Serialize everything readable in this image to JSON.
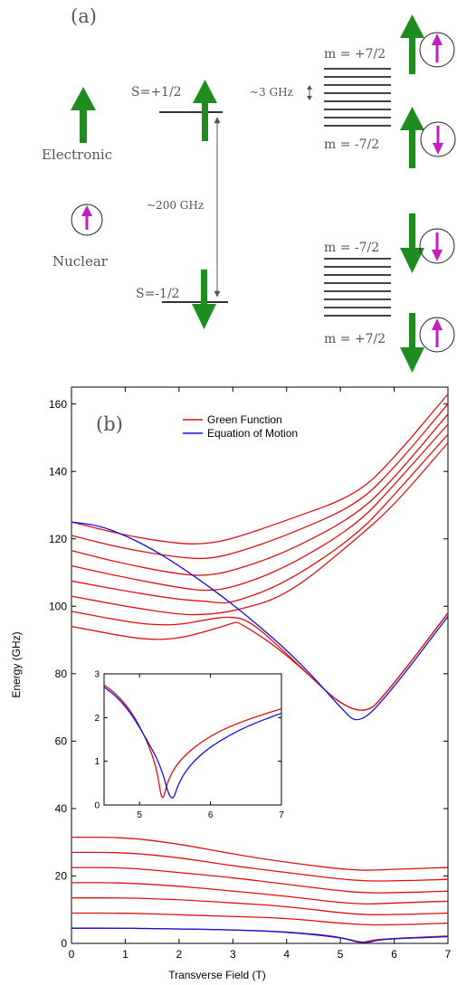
{
  "panel_a": {
    "label": "(a)",
    "electronic_label": "Electronic",
    "nuclear_label": "Nuclear",
    "s_up_label": "S=+1/2",
    "s_down_label": "S=-1/2",
    "gap_label": "~200 GHz",
    "hf_label": "~3 GHz",
    "upper_top_label": "m = +7/2",
    "upper_bottom_label": "m = -7/2",
    "lower_top_label": "m = -7/2",
    "lower_bottom_label": "m = +7/2",
    "colors": {
      "electronic": "#1e8c1e",
      "nuclear": "#c21ec2",
      "level": "#444444"
    }
  },
  "panel_b": {
    "label": "(b)",
    "legend_red": "Green Function",
    "legend_blue": "Equation of Motion"
  },
  "chart_data": [
    {
      "type": "line",
      "xlabel": "Transverse Field (T)",
      "ylabel": "Energy (GHz)",
      "xlim": [
        0,
        7
      ],
      "ylim": [
        0,
        165
      ],
      "xticks": [
        0,
        1,
        2,
        3,
        4,
        5,
        6,
        7
      ],
      "yticks": [
        0,
        20,
        40,
        60,
        80,
        100,
        120,
        140,
        160
      ],
      "legend": "top-center",
      "colors": {
        "Green Function": "#e01010",
        "Equation of Motion": "#1010e0"
      },
      "series": [
        {
          "name": "Green Function",
          "color": "#e01010",
          "points": [
            [
              0,
              125
            ],
            [
              1,
              121
            ],
            [
              2,
              118.5
            ],
            [
              2.5,
              118.5
            ],
            [
              3,
              120
            ],
            [
              4,
              125.5
            ],
            [
              5.3,
              133
            ],
            [
              6,
              144
            ],
            [
              7,
              163
            ]
          ]
        },
        {
          "name": "Green Function",
          "color": "#e01010",
          "points": [
            [
              0,
              121
            ],
            [
              1,
              117
            ],
            [
              2,
              114.5
            ],
            [
              2.5,
              114
            ],
            [
              3,
              115.5
            ],
            [
              4,
              121
            ],
            [
              5.3,
              130
            ],
            [
              6,
              141
            ],
            [
              7,
              160
            ]
          ]
        },
        {
          "name": "Green Function",
          "color": "#e01010",
          "points": [
            [
              0,
              116.5
            ],
            [
              1,
              112.5
            ],
            [
              2,
              109.5
            ],
            [
              2.5,
              109
            ],
            [
              3,
              110.5
            ],
            [
              4,
              116
            ],
            [
              5.3,
              127
            ],
            [
              6,
              138
            ],
            [
              7,
              157
            ]
          ]
        },
        {
          "name": "Green Function",
          "color": "#e01010",
          "points": [
            [
              0,
              112
            ],
            [
              1,
              108.5
            ],
            [
              2,
              105.5
            ],
            [
              2.5,
              104.5
            ],
            [
              3,
              105.5
            ],
            [
              4,
              111.5
            ],
            [
              5.3,
              124
            ],
            [
              6,
              136
            ],
            [
              7,
              154
            ]
          ]
        },
        {
          "name": "Green Function",
          "color": "#e01010",
          "points": [
            [
              0,
              107.5
            ],
            [
              1,
              104.5
            ],
            [
              2,
              102
            ],
            [
              2.5,
              101.5
            ],
            [
              2.7,
              101
            ],
            [
              3,
              101
            ],
            [
              4,
              107
            ],
            [
              5.3,
              121
            ],
            [
              6,
              133
            ],
            [
              7,
              151
            ]
          ]
        },
        {
          "name": "Green Function",
          "color": "#e01010",
          "points": [
            [
              0,
              103
            ],
            [
              1,
              100
            ],
            [
              2,
              97.5
            ],
            [
              2.5,
              97.5
            ],
            [
              3,
              98.5
            ],
            [
              4,
              103
            ],
            [
              5.3,
              120
            ],
            [
              6,
              130
            ],
            [
              7,
              148.5
            ]
          ]
        },
        {
          "name": "Green Function",
          "color": "#e01010",
          "points": [
            [
              0,
              98.5
            ],
            [
              1,
              95.5
            ],
            [
              1.5,
              94.5
            ],
            [
              2,
              94.5
            ],
            [
              2.5,
              96
            ],
            [
              2.9,
              97
            ],
            [
              3.3,
              96
            ],
            [
              4,
              86
            ],
            [
              5.35,
              65.5
            ],
            [
              6,
              77
            ],
            [
              7,
              98
            ]
          ]
        },
        {
          "name": "Green Function",
          "color": "#e01010",
          "points": [
            [
              0,
              94
            ],
            [
              1,
              91
            ],
            [
              1.5,
              90
            ],
            [
              2,
              90.5
            ],
            [
              2.5,
              92.5
            ],
            [
              3,
              95
            ],
            [
              3.1,
              95.5
            ],
            [
              4,
              86
            ],
            [
              5.35,
              65.5
            ],
            [
              6,
              77
            ],
            [
              7,
              98
            ]
          ]
        },
        {
          "name": "Equation of Motion",
          "color": "#1010e0",
          "points": [
            [
              0,
              125
            ],
            [
              0.5,
              124
            ],
            [
              1,
              121
            ],
            [
              1.5,
              117
            ],
            [
              2,
              112
            ],
            [
              2.5,
              106.5
            ],
            [
              3,
              100.5
            ],
            [
              3.5,
              94
            ],
            [
              4,
              87
            ],
            [
              4.5,
              79
            ],
            [
              5,
              70
            ],
            [
              5.35,
              64.5
            ],
            [
              6,
              76
            ],
            [
              7,
              97
            ]
          ]
        },
        {
          "name": "Green Function",
          "color": "#e01010",
          "points": [
            [
              0,
              31.5
            ],
            [
              1,
              31.5
            ],
            [
              2,
              29.5
            ],
            [
              3,
              26.5
            ],
            [
              4,
              24
            ],
            [
              5.3,
              21.5
            ],
            [
              6,
              22
            ],
            [
              7,
              22.5
            ]
          ]
        },
        {
          "name": "Green Function",
          "color": "#e01010",
          "points": [
            [
              0,
              27
            ],
            [
              1,
              27
            ],
            [
              2,
              25.5
            ],
            [
              3,
              23
            ],
            [
              4,
              21
            ],
            [
              5.3,
              18.5
            ],
            [
              6,
              18.5
            ],
            [
              7,
              19
            ]
          ]
        },
        {
          "name": "Green Function",
          "color": "#e01010",
          "points": [
            [
              0,
              22.5
            ],
            [
              1,
              22.5
            ],
            [
              2,
              21
            ],
            [
              3,
              19.5
            ],
            [
              4,
              17.5
            ],
            [
              5.3,
              15
            ],
            [
              6,
              15
            ],
            [
              7,
              15.5
            ]
          ]
        },
        {
          "name": "Green Function",
          "color": "#e01010",
          "points": [
            [
              0,
              18
            ],
            [
              1,
              18
            ],
            [
              2,
              17
            ],
            [
              3,
              15.5
            ],
            [
              4,
              14
            ],
            [
              5.3,
              11.5
            ],
            [
              6,
              12
            ],
            [
              7,
              12.5
            ]
          ]
        },
        {
          "name": "Green Function",
          "color": "#e01010",
          "points": [
            [
              0,
              13.5
            ],
            [
              1,
              13.5
            ],
            [
              2,
              13
            ],
            [
              3,
              12
            ],
            [
              4,
              11
            ],
            [
              5.3,
              8.5
            ],
            [
              6,
              8.5
            ],
            [
              7,
              9
            ]
          ]
        },
        {
          "name": "Green Function",
          "color": "#e01010",
          "points": [
            [
              0,
              9
            ],
            [
              1,
              9
            ],
            [
              2,
              8.5
            ],
            [
              3,
              8
            ],
            [
              4,
              7.5
            ],
            [
              5.3,
              5.5
            ],
            [
              6,
              5.5
            ],
            [
              7,
              6
            ]
          ]
        },
        {
          "name": "Green Function",
          "color": "#e01010",
          "points": [
            [
              0,
              4.5
            ],
            [
              1,
              4.5
            ],
            [
              2,
              4.3
            ],
            [
              3,
              4
            ],
            [
              4,
              3.5
            ],
            [
              5,
              2
            ],
            [
              5.35,
              0
            ],
            [
              5.6,
              1
            ],
            [
              6,
              1.5
            ],
            [
              7,
              2.2
            ]
          ]
        },
        {
          "name": "Equation of Motion",
          "color": "#1010e0",
          "points": [
            [
              0,
              4.5
            ],
            [
              1,
              4.5
            ],
            [
              2,
              4.3
            ],
            [
              3,
              4
            ],
            [
              4,
              3.4
            ],
            [
              5,
              1.8
            ],
            [
              5.45,
              0
            ],
            [
              5.7,
              1
            ],
            [
              6,
              1.4
            ],
            [
              7,
              2
            ]
          ]
        }
      ]
    },
    {
      "type": "line",
      "xlim": [
        4.5,
        7
      ],
      "ylim": [
        0,
        3
      ],
      "xticks": [
        5,
        6,
        7
      ],
      "yticks": [
        0,
        1,
        2,
        3
      ],
      "series": [
        {
          "name": "Green Function",
          "color": "#e01010",
          "points": [
            [
              4.5,
              2.75
            ],
            [
              4.7,
              2.5
            ],
            [
              4.9,
              2.1
            ],
            [
              5.1,
              1.5
            ],
            [
              5.25,
              0.8
            ],
            [
              5.32,
              0
            ],
            [
              5.4,
              0.6
            ],
            [
              5.6,
              1.1
            ],
            [
              6,
              1.6
            ],
            [
              6.5,
              1.95
            ],
            [
              7,
              2.2
            ]
          ]
        },
        {
          "name": "Equation of Motion",
          "color": "#1010e0",
          "points": [
            [
              4.5,
              2.7
            ],
            [
              4.7,
              2.45
            ],
            [
              4.9,
              2.05
            ],
            [
              5.1,
              1.5
            ],
            [
              5.3,
              0.9
            ],
            [
              5.45,
              0
            ],
            [
              5.55,
              0.5
            ],
            [
              5.7,
              0.9
            ],
            [
              6,
              1.35
            ],
            [
              6.5,
              1.8
            ],
            [
              7,
              2.1
            ]
          ]
        }
      ]
    }
  ]
}
